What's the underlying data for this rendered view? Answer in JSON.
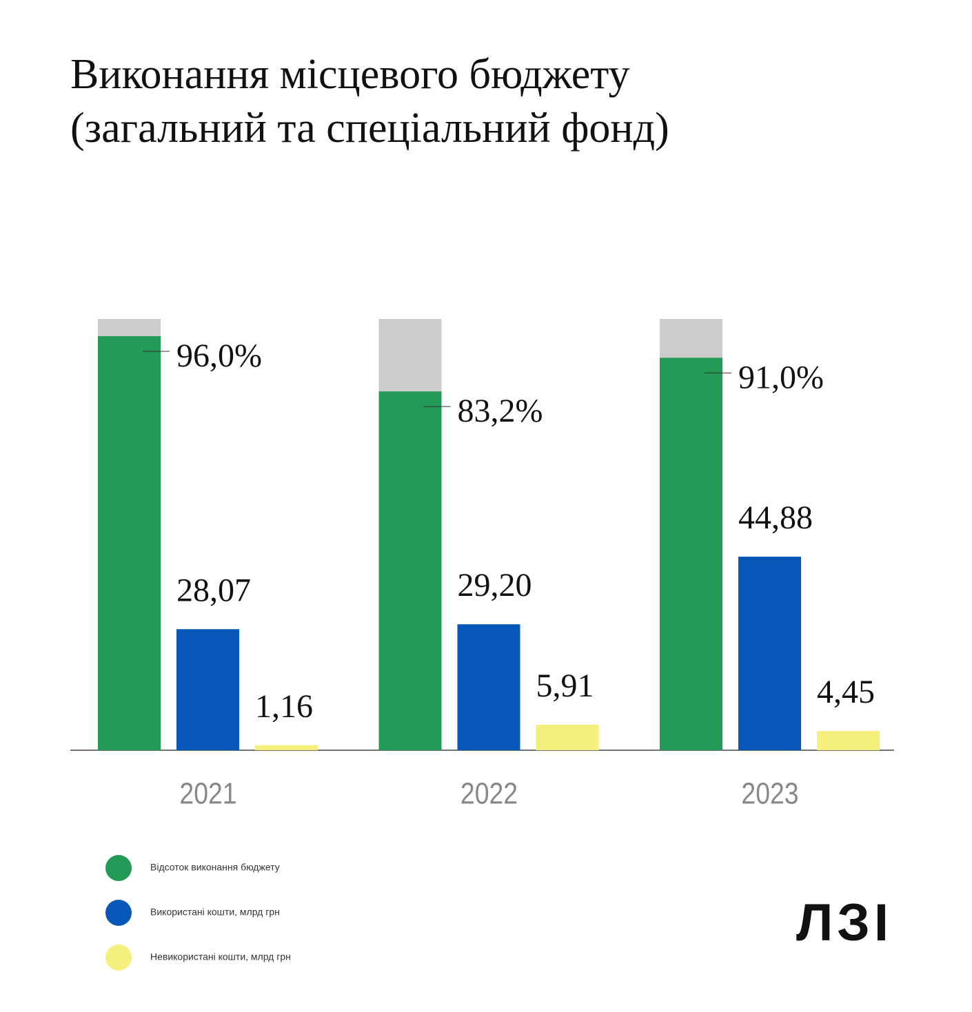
{
  "chart_data": {
    "type": "bar",
    "title": [
      "Виконання місцевого бюджету",
      "(загальний та спеціальний фонд)"
    ],
    "categories": [
      "2021",
      "2022",
      "2023"
    ],
    "ylim": [
      0,
      100
    ],
    "series": [
      {
        "name": "Відсоток виконання бюджету",
        "color": "#239b56",
        "background": "#cccccc",
        "values": [
          96.0,
          83.2,
          91.0
        ],
        "value_labels": [
          "96,0%",
          "83,2%",
          "91,0%"
        ]
      },
      {
        "name": "Використані кошти, млрд грн",
        "color": "#0657b8",
        "values": [
          28.07,
          29.2,
          44.88
        ],
        "value_labels": [
          "28,07",
          "29,20",
          "44,88"
        ]
      },
      {
        "name": "Невикористані кошти, млрд грн",
        "color": "#f5f07b",
        "values": [
          1.16,
          5.91,
          4.45
        ],
        "value_labels": [
          "1,16",
          "5,91",
          "4,45"
        ]
      }
    ],
    "logo": "ЛЗІ"
  }
}
